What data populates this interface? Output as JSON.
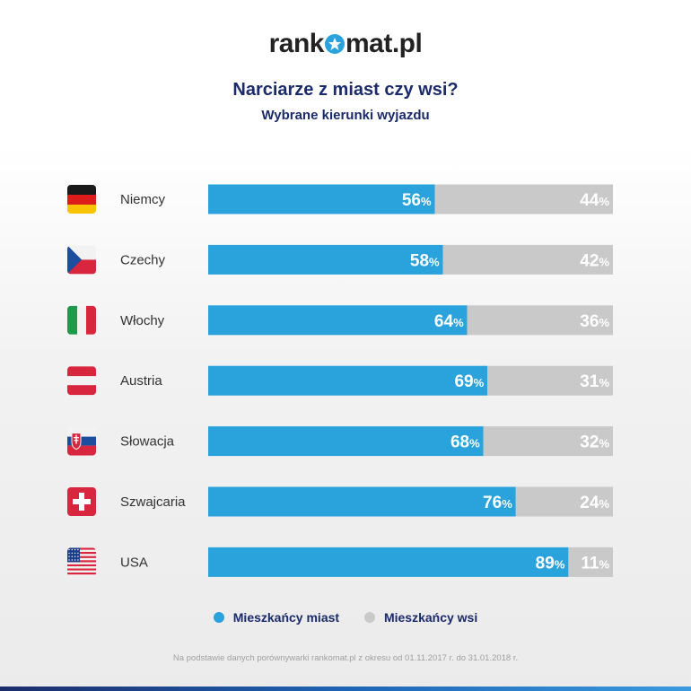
{
  "logo": {
    "left": "rank",
    "right": "mat.pl"
  },
  "colors": {
    "city": "#2aa3dc",
    "village": "#c9c9c9",
    "title": "#1b2a6b",
    "country_label": "#333333"
  },
  "chart_data": {
    "type": "bar",
    "orientation": "horizontal",
    "stacked": true,
    "title": "Narciarze z miast czy wsi?",
    "subtitle": "Wybrane kierunki wyjazdu",
    "categories": [
      "Niemcy",
      "Czechy",
      "Włochy",
      "Austria",
      "Słowacja",
      "Szwajcaria",
      "USA"
    ],
    "flags": [
      "germany-flag-icon",
      "czech-flag-icon",
      "italy-flag-icon",
      "austria-flag-icon",
      "slovakia-flag-icon",
      "switzerland-flag-icon",
      "usa-flag-icon"
    ],
    "series": [
      {
        "name": "Mieszkańcy miast",
        "values": [
          56,
          58,
          64,
          69,
          68,
          76,
          89
        ]
      },
      {
        "name": "Mieszkańcy wsi",
        "values": [
          44,
          42,
          36,
          31,
          32,
          24,
          11
        ]
      }
    ],
    "value_suffix": "%",
    "xlim": [
      0,
      100
    ],
    "legend_position": "bottom",
    "grid": false
  },
  "footnote": "Na podstawie danych porównywarki rankomat.pl z okresu od 01.11.2017 r. do 31.01.2018 r."
}
